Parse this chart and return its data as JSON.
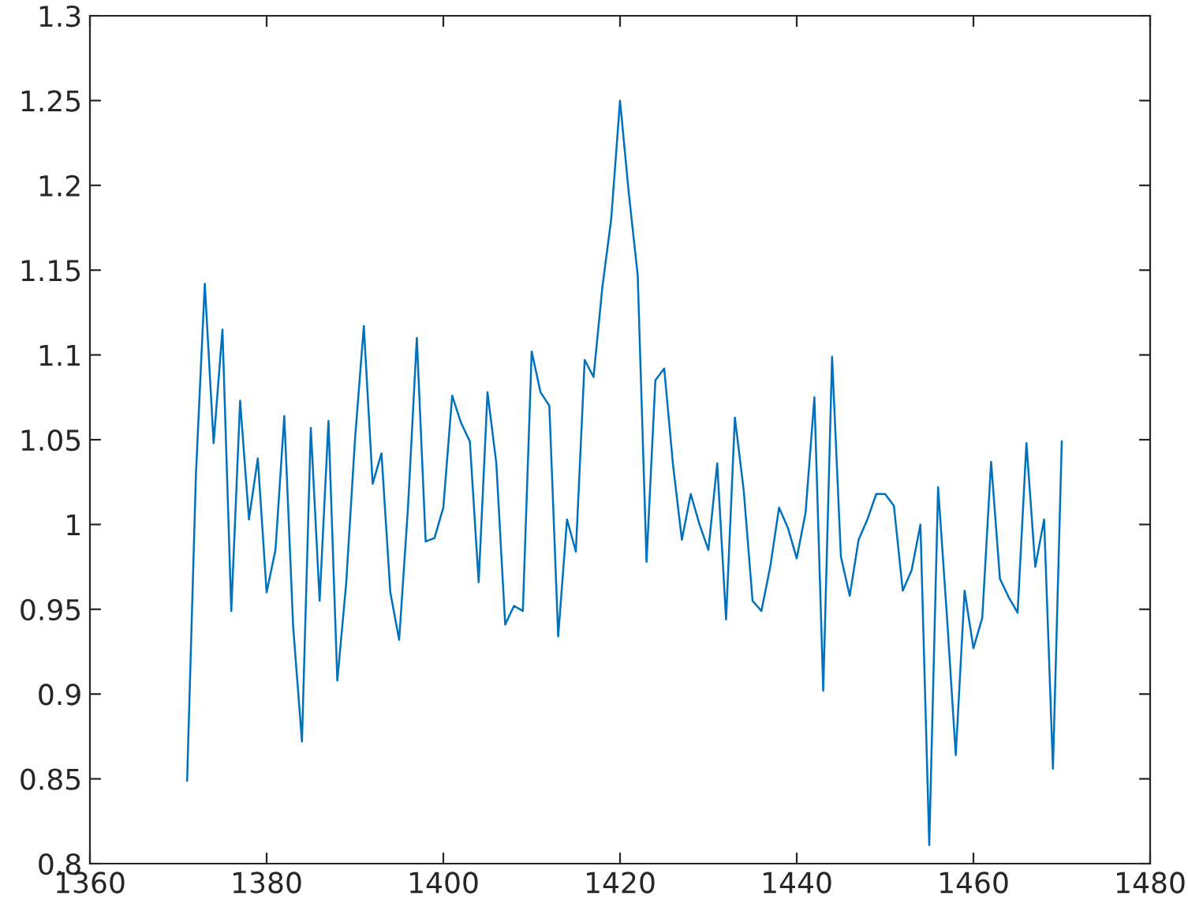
{
  "chart_data": {
    "type": "line",
    "x": [
      1371,
      1372,
      1373,
      1374,
      1375,
      1376,
      1377,
      1378,
      1379,
      1380,
      1381,
      1382,
      1383,
      1384,
      1385,
      1386,
      1387,
      1388,
      1389,
      1390,
      1391,
      1392,
      1393,
      1394,
      1395,
      1396,
      1397,
      1398,
      1399,
      1400,
      1401,
      1402,
      1403,
      1404,
      1405,
      1406,
      1407,
      1408,
      1409,
      1410,
      1411,
      1412,
      1413,
      1414,
      1415,
      1416,
      1417,
      1418,
      1419,
      1420,
      1421,
      1422,
      1423,
      1424,
      1425,
      1426,
      1427,
      1428,
      1429,
      1430,
      1431,
      1432,
      1433,
      1434,
      1435,
      1436,
      1437,
      1438,
      1439,
      1440,
      1441,
      1442,
      1443,
      1444,
      1445,
      1446,
      1447,
      1448,
      1449,
      1450,
      1451,
      1452,
      1453,
      1454,
      1455,
      1456,
      1457,
      1458,
      1459,
      1460,
      1461,
      1462,
      1463,
      1464,
      1465,
      1466,
      1467,
      1468,
      1469,
      1470
    ],
    "series": [
      {
        "color": "#0072bd",
        "values": [
          0.849,
          1.03,
          1.142,
          1.048,
          1.115,
          0.949,
          1.073,
          1.003,
          1.039,
          0.96,
          0.985,
          1.064,
          0.94,
          0.872,
          1.057,
          0.955,
          1.061,
          0.908,
          0.965,
          1.05,
          1.117,
          1.024,
          1.042,
          0.96,
          0.932,
          1.01,
          1.11,
          0.99,
          0.992,
          1.01,
          1.076,
          1.06,
          1.049,
          0.966,
          1.078,
          1.036,
          0.941,
          0.952,
          0.949,
          1.102,
          1.078,
          1.07,
          0.934,
          1.003,
          0.984,
          1.097,
          1.087,
          1.14,
          1.18,
          1.25,
          1.195,
          1.147,
          0.978,
          1.085,
          1.092,
          1.035,
          0.991,
          1.018,
          1.0,
          0.985,
          1.036,
          0.944,
          1.063,
          1.02,
          0.955,
          0.949,
          0.975,
          1.01,
          0.998,
          0.98,
          1.007,
          1.075,
          0.902,
          1.099,
          0.981,
          0.958,
          0.991,
          1.003,
          1.018,
          1.018,
          1.011,
          0.961,
          0.973,
          1.0,
          0.811,
          1.022,
          0.946,
          0.864,
          0.961,
          0.927,
          0.945,
          1.037,
          0.968,
          0.957,
          0.948,
          1.048,
          0.975,
          1.003,
          0.856,
          1.049
        ]
      }
    ],
    "xlim": [
      1360,
      1480
    ],
    "xticks": [
      1360,
      1380,
      1400,
      1420,
      1440,
      1460,
      1480
    ],
    "ylim": [
      0.8,
      1.3
    ],
    "yticks": [
      0.8,
      0.85,
      0.9,
      0.95,
      1,
      1.05,
      1.1,
      1.15,
      1.2,
      1.25,
      1.3
    ],
    "grid": false,
    "marker": "none",
    "line_style": "solid"
  }
}
